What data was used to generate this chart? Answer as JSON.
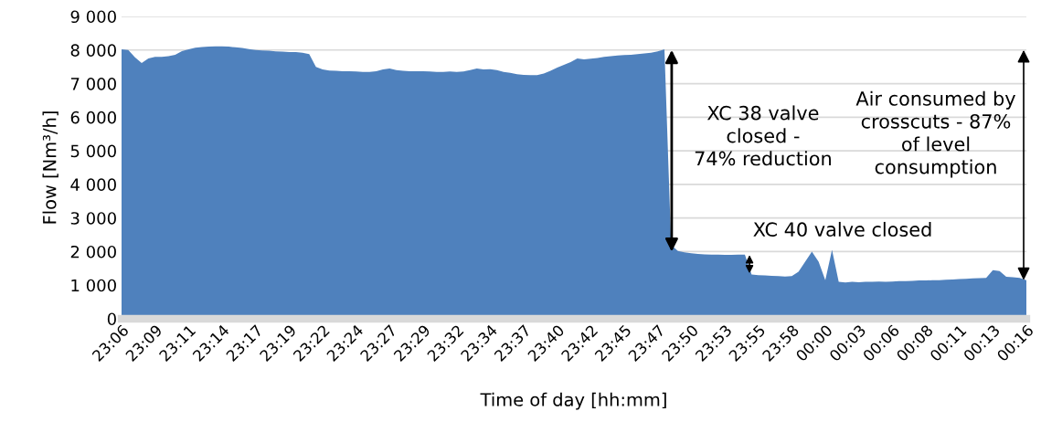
{
  "chart_data": {
    "type": "area",
    "xlabel": "Time of day [hh:mm]",
    "ylabel": "Flow [Nm³/h]",
    "categories": [
      "23:06",
      null,
      null,
      null,
      null,
      "23:09",
      null,
      null,
      null,
      null,
      "23:11",
      null,
      null,
      null,
      null,
      "23:14",
      null,
      null,
      null,
      null,
      "23:17",
      null,
      null,
      null,
      null,
      "23:19",
      null,
      null,
      null,
      null,
      "23:22",
      null,
      null,
      null,
      null,
      "23:24",
      null,
      null,
      null,
      null,
      "23:27",
      null,
      null,
      null,
      null,
      "23:29",
      null,
      null,
      null,
      null,
      "23:32",
      null,
      null,
      null,
      null,
      "23:34",
      null,
      null,
      null,
      null,
      "23:37",
      null,
      null,
      null,
      null,
      "23:40",
      null,
      null,
      null,
      null,
      "23:42",
      null,
      null,
      null,
      null,
      "23:45",
      null,
      null,
      null,
      null,
      "23:47",
      null,
      null,
      null,
      null,
      "23:50",
      null,
      null,
      null,
      null,
      "23:53",
      null,
      null,
      null,
      null,
      "23:55",
      null,
      null,
      null,
      null,
      "23:58",
      null,
      null,
      null,
      null,
      "00:00",
      null,
      null,
      null,
      null,
      "00:03",
      null,
      null,
      null,
      null,
      "00:06",
      null,
      null,
      null,
      null,
      "00:08",
      null,
      null,
      null,
      null,
      "00:11",
      null,
      null,
      null,
      null,
      "00:13",
      null,
      null,
      null,
      null,
      "00:16"
    ],
    "series": [
      {
        "color": "#4f81bd",
        "values": [
          8020,
          8000,
          7780,
          7610,
          7750,
          7800,
          7800,
          7820,
          7860,
          7970,
          8020,
          8070,
          8090,
          8100,
          8110,
          8110,
          8100,
          8080,
          8060,
          8030,
          8000,
          7990,
          7980,
          7960,
          7950,
          7940,
          7940,
          7920,
          7880,
          7500,
          7420,
          7390,
          7380,
          7370,
          7370,
          7360,
          7350,
          7350,
          7370,
          7420,
          7450,
          7400,
          7380,
          7370,
          7370,
          7370,
          7360,
          7350,
          7350,
          7360,
          7350,
          7360,
          7400,
          7450,
          7420,
          7430,
          7400,
          7350,
          7320,
          7280,
          7260,
          7250,
          7250,
          7300,
          7380,
          7480,
          7560,
          7640,
          7750,
          7720,
          7740,
          7760,
          7800,
          7820,
          7840,
          7850,
          7860,
          7880,
          7900,
          7920,
          7960,
          8020,
          2200,
          2020,
          1980,
          1950,
          1930,
          1920,
          1910,
          1910,
          1900,
          1900,
          1910,
          1910,
          1320,
          1300,
          1290,
          1280,
          1270,
          1260,
          1270,
          1400,
          1700,
          2000,
          1700,
          1150,
          2050,
          1100,
          1080,
          1100,
          1090,
          1100,
          1100,
          1110,
          1100,
          1110,
          1120,
          1120,
          1130,
          1140,
          1140,
          1150,
          1150,
          1160,
          1170,
          1180,
          1190,
          1200,
          1210,
          1220,
          1450,
          1420,
          1250,
          1240,
          1220,
          1150
        ]
      }
    ],
    "ylim": [
      0,
      9000
    ],
    "yticks": [
      0,
      {
        "value": 1000,
        "label": "1 000"
      },
      {
        "value": 2000,
        "label": "2 000"
      },
      {
        "value": 3000,
        "label": "3 000"
      },
      {
        "value": 4000,
        "label": "4 000"
      },
      {
        "value": 5000,
        "label": "5 000"
      },
      {
        "value": 6000,
        "label": "6 000"
      },
      {
        "value": 7000,
        "label": "7 000"
      },
      {
        "value": 8000,
        "label": "8 000"
      },
      {
        "value": 9000,
        "label": "9 000"
      }
    ],
    "grid": "y",
    "legend": false,
    "annotations": [
      "XC 38 valve\nclosed -\n74% reduction",
      "XC 40 valve closed",
      "Air consumed by\ncrosscuts - 87%\nof level\nconsumption"
    ]
  }
}
